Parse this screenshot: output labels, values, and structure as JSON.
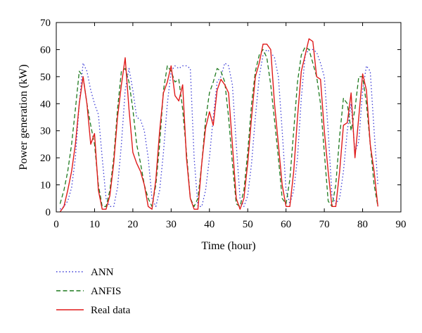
{
  "chart_data": {
    "type": "line",
    "title": "",
    "xlabel": "Time (hour)",
    "ylabel": "Power generation (kW)",
    "xlim": [
      0,
      90
    ],
    "ylim": [
      0,
      70
    ],
    "xticks": [
      0,
      10,
      20,
      30,
      40,
      50,
      60,
      70,
      80,
      90
    ],
    "yticks": [
      0,
      10,
      20,
      30,
      40,
      50,
      60,
      70
    ],
    "grid": false,
    "legend_position": "below-left",
    "series": [
      {
        "name": "ANN",
        "style": "dotted",
        "color": "#3b3bd6",
        "x": [
          1,
          2,
          3,
          4,
          5,
          6,
          7,
          8,
          9,
          10,
          11,
          12,
          13,
          14,
          15,
          16,
          17,
          18,
          19,
          20,
          21,
          22,
          23,
          24,
          25,
          26,
          27,
          28,
          29,
          30,
          31,
          32,
          33,
          34,
          35,
          36,
          37,
          38,
          39,
          40,
          41,
          42,
          43,
          44,
          45,
          46,
          47,
          48,
          49,
          50,
          51,
          52,
          53,
          54,
          55,
          56,
          57,
          58,
          59,
          60,
          61,
          62,
          63,
          64,
          65,
          66,
          67,
          68,
          69,
          70,
          71,
          72,
          73,
          74,
          75,
          76,
          77,
          78,
          79,
          80,
          81,
          82,
          83,
          84
        ],
        "y": [
          1,
          2,
          4,
          9,
          20,
          40,
          55,
          52,
          45,
          40,
          36,
          20,
          5,
          2,
          2,
          9,
          25,
          45,
          53,
          45,
          35,
          34,
          30,
          20,
          5,
          2,
          8,
          22,
          40,
          52,
          54,
          53,
          54,
          54,
          53,
          20,
          2,
          2,
          8,
          20,
          35,
          48,
          50,
          55,
          54,
          47,
          25,
          5,
          2,
          6,
          18,
          35,
          50,
          58,
          60,
          59,
          57,
          50,
          30,
          8,
          3,
          8,
          20,
          42,
          58,
          60,
          60,
          59,
          55,
          50,
          30,
          6,
          3,
          5,
          15,
          30,
          40,
          22,
          26,
          45,
          54,
          52,
          30,
          10
        ]
      },
      {
        "name": "ANFIS",
        "style": "dashed",
        "color": "#1f7a1f",
        "x": [
          1,
          2,
          3,
          4,
          5,
          6,
          7,
          8,
          9,
          10,
          11,
          12,
          13,
          14,
          15,
          16,
          17,
          18,
          19,
          20,
          21,
          22,
          23,
          24,
          25,
          26,
          27,
          28,
          29,
          30,
          31,
          32,
          33,
          34,
          35,
          36,
          37,
          38,
          39,
          40,
          41,
          42,
          43,
          44,
          45,
          46,
          47,
          48,
          49,
          50,
          51,
          52,
          53,
          54,
          55,
          56,
          57,
          58,
          59,
          60,
          61,
          62,
          63,
          64,
          65,
          66,
          67,
          68,
          69,
          70,
          71,
          72,
          73,
          74,
          75,
          76,
          77,
          78,
          79,
          80,
          81,
          82,
          83,
          84
        ],
        "y": [
          3,
          8,
          15,
          25,
          38,
          52,
          50,
          40,
          32,
          25,
          10,
          2,
          2,
          8,
          20,
          38,
          52,
          53,
          48,
          38,
          25,
          18,
          10,
          5,
          2,
          10,
          25,
          45,
          54,
          52,
          48,
          49,
          38,
          22,
          5,
          2,
          5,
          18,
          34,
          44,
          48,
          53,
          52,
          48,
          35,
          18,
          3,
          2,
          8,
          22,
          40,
          52,
          58,
          60,
          57,
          47,
          34,
          20,
          5,
          3,
          12,
          30,
          48,
          58,
          61,
          60,
          55,
          50,
          40,
          22,
          4,
          2,
          10,
          28,
          42,
          40,
          30,
          38,
          50,
          50,
          40,
          25,
          10,
          2
        ]
      },
      {
        "name": "Real data",
        "style": "solid",
        "color": "#e01b1b",
        "x": [
          1,
          2,
          3,
          4,
          5,
          6,
          7,
          8,
          9,
          10,
          11,
          12,
          13,
          14,
          15,
          16,
          17,
          18,
          19,
          20,
          21,
          22,
          23,
          24,
          25,
          26,
          27,
          28,
          29,
          30,
          31,
          32,
          33,
          34,
          35,
          36,
          37,
          38,
          39,
          40,
          41,
          42,
          43,
          44,
          45,
          46,
          47,
          48,
          49,
          50,
          51,
          52,
          53,
          54,
          55,
          56,
          57,
          58,
          59,
          60,
          61,
          62,
          63,
          64,
          65,
          66,
          67,
          68,
          69,
          70,
          71,
          72,
          73,
          74,
          75,
          76,
          77,
          78,
          79,
          80,
          81,
          82,
          83,
          84
        ],
        "y": [
          0,
          2,
          8,
          15,
          25,
          40,
          50,
          40,
          25,
          29,
          8,
          1,
          1,
          6,
          18,
          35,
          47,
          57,
          38,
          22,
          18,
          15,
          10,
          2,
          1,
          12,
          30,
          44,
          48,
          54,
          43,
          41,
          47,
          20,
          5,
          1,
          1,
          18,
          31,
          37,
          32,
          45,
          49,
          47,
          44,
          25,
          5,
          1,
          5,
          18,
          35,
          50,
          55,
          62,
          62,
          60,
          40,
          25,
          10,
          2,
          2,
          15,
          35,
          52,
          58,
          64,
          63,
          50,
          49,
          30,
          15,
          2,
          2,
          15,
          32,
          33,
          44,
          20,
          35,
          51,
          45,
          25,
          15,
          2
        ]
      }
    ]
  }
}
